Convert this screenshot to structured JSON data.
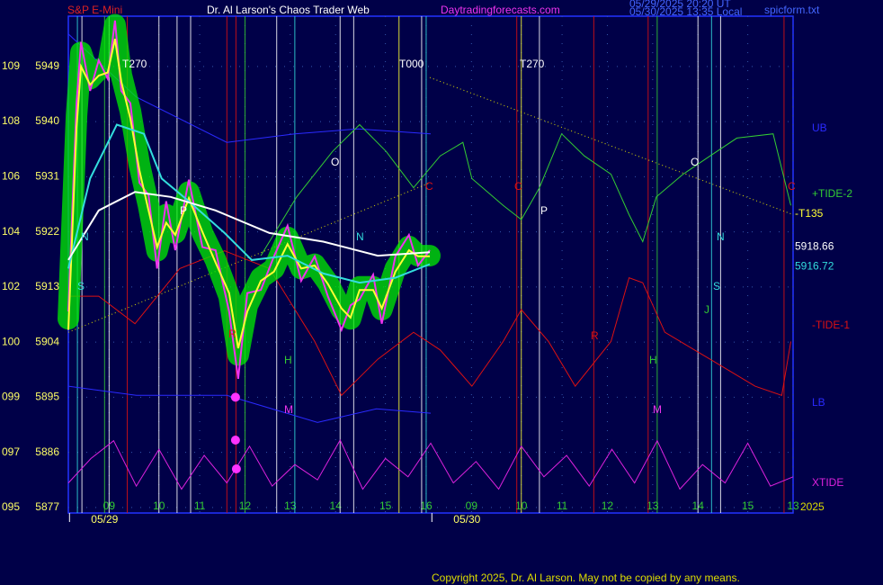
{
  "chart_data": {
    "type": "line",
    "title": "Dr. Al Larson's Chaos Trader Web",
    "instrument": "S&P E-Mini",
    "website": "Daytradingforecasts.com",
    "timestamps": [
      "05/29/2025 20:20 UT",
      "05/30/2025 13:35 Local"
    ],
    "file_label": "spicform.txt",
    "copyright": "Copyright 2025, Dr. Al Larson. May not be copied by any means.",
    "ylim": [
      5876.1,
      5957.2
    ],
    "yticks": [
      5949,
      5940,
      5931,
      5922,
      5913,
      5904,
      5895,
      5886,
      5877
    ],
    "ytick_codes": [
      "109",
      "108",
      "106",
      "104",
      "102",
      "100",
      "099",
      "097",
      "095"
    ],
    "xlim": [
      0,
      16
    ],
    "xticks": [
      {
        "value": 0.9,
        "label": "09"
      },
      {
        "value": 2.0,
        "label": "10"
      },
      {
        "value": 2.9,
        "label": "11"
      },
      {
        "value": 3.9,
        "label": "12"
      },
      {
        "value": 4.9,
        "label": "13"
      },
      {
        "value": 5.9,
        "label": "14"
      },
      {
        "value": 7.0,
        "label": "15"
      },
      {
        "value": 7.9,
        "label": "16"
      },
      {
        "value": 8.9,
        "label": "09"
      },
      {
        "value": 10.0,
        "label": "10"
      },
      {
        "value": 10.9,
        "label": "11"
      },
      {
        "value": 11.9,
        "label": "12"
      },
      {
        "value": 12.9,
        "label": "13"
      },
      {
        "value": 13.9,
        "label": "14"
      },
      {
        "value": 15.0,
        "label": "15"
      },
      {
        "value": 16.0,
        "label": "13"
      }
    ],
    "year_label": "2025",
    "date_labels": [
      {
        "x": 0.8,
        "label": "05/29"
      },
      {
        "x": 8.8,
        "label": "05/30"
      }
    ],
    "grid": true,
    "series": [
      {
        "name": "UB",
        "color": "#2a2aff",
        "x": [
          0,
          1.5,
          3.5,
          5.0,
          6.4,
          8.0
        ],
        "values": [
          5954.3,
          5944,
          5936.6,
          5938,
          5938.8,
          5938
        ]
      },
      {
        "name": "LB",
        "color": "#2a2aff",
        "x": [
          0,
          1.5,
          3.5,
          5.5,
          6.8,
          8.0
        ],
        "values": [
          5896.8,
          5895.3,
          5895.3,
          5890.9,
          5893.1,
          5892.4
        ]
      },
      {
        "name": "+TIDE-2",
        "color": "#33cc33",
        "x": [
          4.25,
          5.04,
          5.83,
          6.43,
          7.02,
          7.62,
          8.21,
          8.71,
          8.91,
          9.6,
          10.0,
          10.4,
          10.89,
          11.39,
          11.98,
          12.38,
          12.68,
          12.98,
          13.57,
          14.17,
          14.76,
          15.56,
          15.95
        ],
        "values": [
          5918.1,
          5927.7,
          5935.1,
          5939.5,
          5935.1,
          5929.2,
          5934.4,
          5936.6,
          5930.7,
          5926.3,
          5924,
          5929.2,
          5938,
          5934.4,
          5931.4,
          5924.8,
          5920.4,
          5927.7,
          5931.4,
          5934.4,
          5937.3,
          5938,
          5926.3
        ]
      },
      {
        "name": "-TIDE-1",
        "color": "#dd1111",
        "x": [
          0,
          0.67,
          1.47,
          2.46,
          3.45,
          4.44,
          5.44,
          6.03,
          6.83,
          7.62,
          8.21,
          8.91,
          9.6,
          10.0,
          10.6,
          11.19,
          11.98,
          12.38,
          12.68,
          13.17,
          14.17,
          15.16,
          15.75,
          15.95
        ],
        "values": [
          5911.5,
          5911.5,
          5907,
          5916,
          5918.9,
          5916,
          5904.1,
          5895.3,
          5901.2,
          5905.6,
          5902.7,
          5896.8,
          5904.1,
          5909.3,
          5904.1,
          5896.8,
          5904.1,
          5914.5,
          5913.7,
          5905.6,
          5901.2,
          5896.8,
          5895.3,
          5904.1
        ]
      },
      {
        "name": "XTIDE",
        "color": "#dd22dd",
        "x": [
          0,
          0.5,
          1.0,
          1.5,
          2.0,
          2.5,
          3.0,
          3.5,
          4.0,
          4.5,
          5.0,
          5.5,
          6.0,
          6.5,
          7.0,
          7.5,
          8.0,
          8.5,
          9.0,
          9.5,
          10.0,
          10.5,
          11.0,
          11.5,
          12.0,
          12.5,
          13.0,
          13.5,
          14.0,
          14.5,
          15.0,
          15.5,
          16.0
        ],
        "values": [
          5881,
          5885,
          5887.9,
          5880.5,
          5886.5,
          5880,
          5885.5,
          5881,
          5887,
          5880.5,
          5884,
          5881.5,
          5888,
          5880,
          5885,
          5882,
          5887.5,
          5881,
          5884.5,
          5880,
          5887,
          5882,
          5885.5,
          5880.5,
          5886.5,
          5881,
          5887.9,
          5880,
          5884,
          5881,
          5887.5,
          5880.5,
          5882
        ]
      },
      {
        "color": "#00ee00",
        "x": [
          0,
          0.18,
          0.28,
          0.48,
          0.67,
          0.87,
          1.03,
          1.17,
          1.37,
          1.57,
          1.77,
          1.96,
          2.16,
          2.36,
          2.66,
          2.96,
          3.25,
          3.55,
          3.75,
          3.95,
          4.25,
          4.54,
          4.84,
          5.14,
          5.44,
          5.73,
          6.03,
          6.23,
          6.43,
          6.73,
          6.92,
          7.22,
          7.52,
          7.72,
          7.98
        ],
        "values": [
          5907.8,
          5941,
          5951.3,
          5947,
          5948.5,
          5949,
          5955.8,
          5947.6,
          5941.7,
          5932.9,
          5926.3,
          5918.9,
          5924.8,
          5921.8,
          5928.5,
          5921.8,
          5917.4,
          5911.5,
          5901.9,
          5910,
          5914.5,
          5916,
          5921.1,
          5916,
          5916.7,
          5913.7,
          5909.3,
          5907.8,
          5913,
          5913,
          5909.3,
          5916,
          5919.6,
          5918.1,
          5918.1
        ],
        "glow": true
      },
      {
        "color": "#ee33ee",
        "x": [
          0,
          0.18,
          0.28,
          0.48,
          0.67,
          0.87,
          1.03,
          1.17,
          1.37,
          1.57,
          1.77,
          1.96,
          2.16,
          2.36,
          2.66,
          2.96,
          3.25,
          3.55,
          3.75,
          3.95,
          4.25,
          4.54,
          4.84,
          5.14,
          5.44,
          5.73,
          6.03,
          6.23,
          6.43,
          6.73,
          6.92,
          7.22,
          7.52,
          7.72,
          7.98
        ],
        "values": [
          5909,
          5943,
          5953,
          5945,
          5950,
          5947,
          5956.5,
          5945,
          5943,
          5930,
          5928,
          5916,
          5927,
          5919,
          5930.5,
          5919.5,
          5919,
          5909,
          5898,
          5912,
          5912.5,
          5918,
          5923,
          5914,
          5918,
          5911.5,
          5906,
          5910,
          5911,
          5915,
          5907,
          5918,
          5921.5,
          5916.5,
          5919
        ]
      },
      {
        "color": "#ffff33",
        "x": [
          0,
          0.18,
          0.28,
          0.48,
          0.67,
          0.87,
          1.03,
          1.17,
          1.37,
          1.57,
          1.77,
          1.96,
          2.16,
          2.36,
          2.66,
          2.96,
          3.25,
          3.55,
          3.75,
          3.95,
          4.25,
          4.54,
          4.84,
          5.14,
          5.44,
          5.73,
          6.03,
          6.23,
          6.43,
          6.73,
          6.92,
          7.22,
          7.52,
          7.72,
          7.98
        ],
        "values": [
          5906,
          5939,
          5949,
          5946,
          5947.5,
          5948,
          5953.5,
          5946.5,
          5940.5,
          5932,
          5925.5,
          5919.5,
          5923.5,
          5921.5,
          5927.5,
          5922,
          5917,
          5912,
          5903,
          5909,
          5914,
          5915.5,
          5920,
          5916,
          5916.5,
          5913.5,
          5909.5,
          5908,
          5912.5,
          5912.5,
          5909.5,
          5915.5,
          5919,
          5918,
          5918
        ]
      },
      {
        "color": "#33dddd",
        "x": [
          0,
          0.48,
          1.07,
          1.67,
          2.06,
          2.66,
          3.45,
          4.05,
          4.84,
          5.63,
          6.43,
          7.22,
          7.98
        ],
        "values": [
          5916,
          5930.7,
          5939.5,
          5938,
          5930.7,
          5927,
          5921.8,
          5917.4,
          5918.1,
          5915.2,
          5913.7,
          5914.5,
          5916.72
        ]
      },
      {
        "color": "#ffffff",
        "x": [
          0,
          0.67,
          1.47,
          2.26,
          3.25,
          4.44,
          5.63,
          6.83,
          7.98
        ],
        "values": [
          5917.4,
          5925.5,
          5928.5,
          5927.7,
          5925.5,
          5921.8,
          5920.4,
          5918.1,
          5918.66
        ]
      }
    ],
    "low_points": {
      "x": [
        3.69,
        3.69,
        3.71
      ],
      "values": [
        5895,
        5888,
        5883.3
      ],
      "color": "#ff33ff"
    },
    "trend_lines": [
      {
        "x": [
          0,
          7.98
        ],
        "values": [
          5905.6,
          5930
        ],
        "color": "#dddd00"
      },
      {
        "x": [
          7.98,
          16.0
        ],
        "values": [
          5947.2,
          5924.8
        ],
        "color": "#dddd00"
      }
    ],
    "last_values": [
      {
        "value": 5918.66,
        "color": "#ffffff"
      },
      {
        "value": 5916.72,
        "color": "#33dddd"
      }
    ],
    "vertical_lines": [
      {
        "x": 0.2,
        "color": "#33dddd"
      },
      {
        "x": 0.3,
        "color": "#ffffff"
      },
      {
        "x": 0.8,
        "color": "#33cc33"
      },
      {
        "x": 0.9,
        "color": "#ffffff"
      },
      {
        "x": 1.3,
        "color": "#dd1111"
      },
      {
        "x": 2.0,
        "color": "#ffffff"
      },
      {
        "x": 2.4,
        "color": "#ffffff"
      },
      {
        "x": 2.7,
        "color": "#ffffff"
      },
      {
        "x": 3.5,
        "color": "#dd1111"
      },
      {
        "x": 3.7,
        "color": "#dd1111"
      },
      {
        "x": 3.9,
        "color": "#33cc33"
      },
      {
        "x": 4.6,
        "color": "#ffffff"
      },
      {
        "x": 5.0,
        "color": "#33dddd"
      },
      {
        "x": 6.0,
        "color": "#ffffff"
      },
      {
        "x": 6.3,
        "color": "#ffffff"
      },
      {
        "x": 7.3,
        "color": "#ffff33"
      },
      {
        "x": 7.8,
        "color": "#ffffff"
      },
      {
        "x": 7.9,
        "color": "#33dddd"
      },
      {
        "x": 9.9,
        "color": "#dd1111"
      },
      {
        "x": 10.0,
        "color": "#ffff33"
      },
      {
        "x": 10.4,
        "color": "#ffffff"
      },
      {
        "x": 11.6,
        "color": "#dd1111"
      },
      {
        "x": 12.8,
        "color": "#dd1111"
      },
      {
        "x": 13.0,
        "color": "#33cc33"
      },
      {
        "x": 13.9,
        "color": "#ffffff"
      },
      {
        "x": 14.2,
        "color": "#33dddd"
      },
      {
        "x": 14.4,
        "color": "#ffffff"
      },
      {
        "x": 15.8,
        "color": "#dd1111"
      }
    ],
    "annotations": [
      "T270",
      "T000",
      "T270",
      "O",
      "P",
      "N",
      "S",
      "N",
      "H",
      "M",
      "R",
      "C",
      "C",
      "P",
      "O",
      "N",
      "S",
      "H",
      "M",
      "R",
      "C",
      "J",
      "-T135"
    ]
  }
}
